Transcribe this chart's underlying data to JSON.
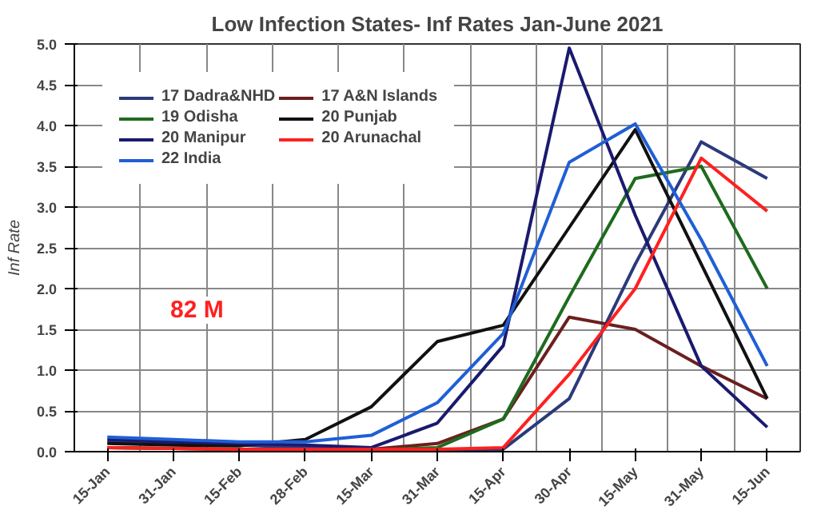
{
  "chart_data": {
    "type": "line",
    "title": "Low Infection States- Inf Rates Jan-June 2021",
    "ylabel": "Inf Rate",
    "categories": [
      "15-Jan",
      "31-Jan",
      "15-Feb",
      "28-Feb",
      "15-Mar",
      "31-Mar",
      "15-Apr",
      "30-Apr",
      "15-May",
      "31-May",
      "15-Jun"
    ],
    "series": [
      {
        "name": "17 Dadra&NHD",
        "color": "#2b3a7a",
        "values": [
          0.12,
          0.1,
          0.08,
          0.05,
          0.03,
          0.03,
          0.03,
          0.65,
          2.3,
          3.8,
          3.35
        ]
      },
      {
        "name": "17 A&N Islands",
        "color": "#6b1f1f",
        "values": [
          0.05,
          0.04,
          0.03,
          0.02,
          0.03,
          0.1,
          0.4,
          1.65,
          1.5,
          1.05,
          0.65
        ]
      },
      {
        "name": "19 Odisha",
        "color": "#1e6b1e",
        "values": [
          0.05,
          0.04,
          0.03,
          0.02,
          0.02,
          0.05,
          0.4,
          1.9,
          3.35,
          3.5,
          2.0
        ]
      },
      {
        "name": "20 Punjab",
        "color": "#111111",
        "values": [
          0.1,
          0.08,
          0.07,
          0.15,
          0.55,
          1.35,
          1.55,
          2.75,
          3.95,
          2.3,
          0.65
        ]
      },
      {
        "name": "20 Manipur",
        "color": "#1a1a6e",
        "values": [
          0.15,
          0.12,
          0.1,
          0.08,
          0.05,
          0.35,
          1.3,
          4.95,
          2.9,
          1.05,
          0.3
        ]
      },
      {
        "name": "20 Arunachal",
        "color": "#ff2020",
        "values": [
          0.05,
          0.04,
          0.03,
          0.03,
          0.03,
          0.03,
          0.05,
          0.95,
          2.0,
          3.6,
          2.95
        ]
      },
      {
        "name": "22 India",
        "color": "#1f5fd6",
        "values": [
          0.18,
          0.15,
          0.12,
          0.12,
          0.2,
          0.6,
          1.45,
          3.55,
          4.02,
          2.6,
          1.05
        ]
      }
    ],
    "ylim": [
      0,
      5
    ],
    "yticks": [
      {
        "value": 0,
        "label": "0.0"
      },
      {
        "value": 0.5,
        "label": "0.5"
      },
      {
        "value": 1,
        "label": "1.0"
      },
      {
        "value": 1.5,
        "label": "1.5"
      },
      {
        "value": 2,
        "label": "2.0"
      },
      {
        "value": 2.5,
        "label": "2.5"
      },
      {
        "value": 3,
        "label": "3.0"
      },
      {
        "value": 3.5,
        "label": "3.5"
      },
      {
        "value": 4,
        "label": "4.0"
      },
      {
        "value": 4.5,
        "label": "4.5"
      },
      {
        "value": 5,
        "label": "5.0"
      }
    ],
    "annotations": [
      "82 M"
    ],
    "grid": true,
    "legend": "top left",
    "marker": "none",
    "line_style": "solid"
  }
}
